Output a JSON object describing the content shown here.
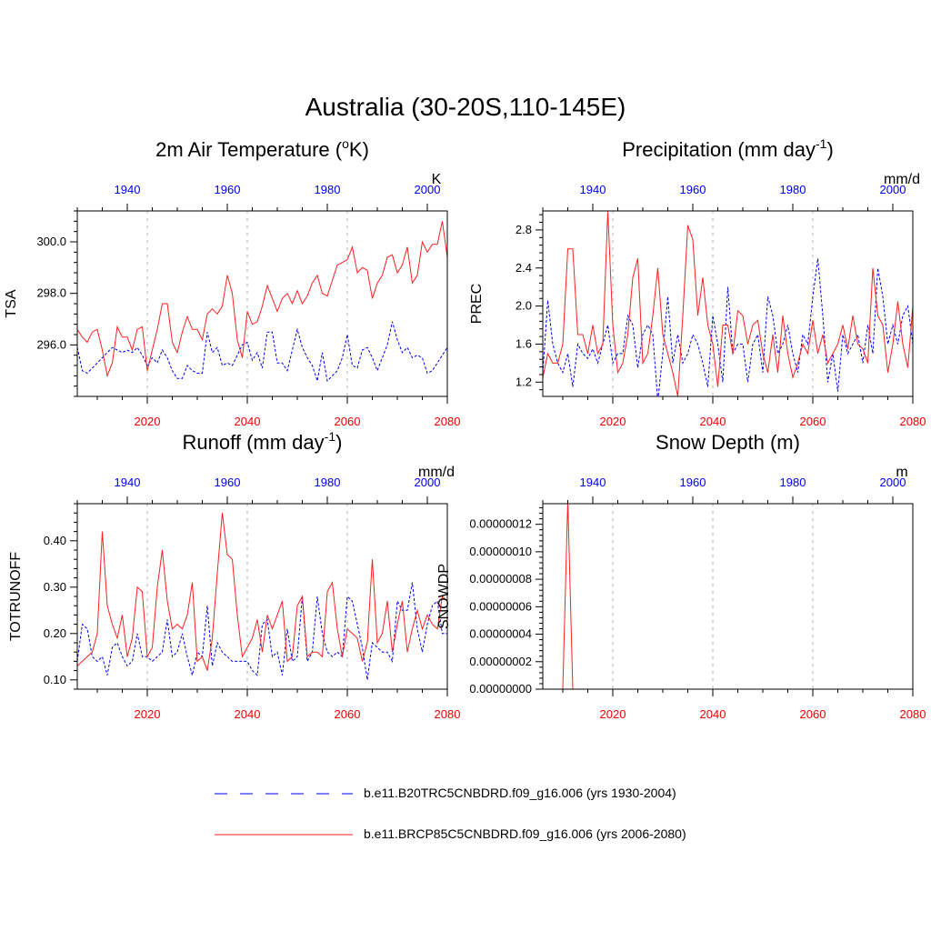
{
  "title": "Australia (30-20S,110-145E)",
  "colors": {
    "model_a": "#0000ee",
    "model_b": "#ff2020",
    "bottom_ticks": "#ee0000",
    "top_ticks": "#0000ee",
    "grid": "#b0b0b0"
  },
  "chart_data": [
    {
      "type": "line",
      "title_main": "2m Air Temperature (",
      "title_sup": "o",
      "title_end": "K)",
      "ylabel": "TSA",
      "units": "K",
      "ylim": [
        294.0,
        301.2
      ],
      "yticks": [
        296.0,
        298.0,
        300.0
      ],
      "ytick_labels": [
        "296.0",
        "298.0",
        "300.0"
      ],
      "x_bottom": [
        2006,
        2080
      ],
      "bottom_ticks": [
        "2020",
        "2040",
        "2060",
        "2080"
      ],
      "top_ticks": [
        "1940",
        "1960",
        "1980",
        "2000"
      ],
      "series": [
        {
          "name": "b.e11.B20TRC5CNBDRD.f09_g16.006 (yrs 1930-2004)",
          "style": "dashed",
          "start": 2006,
          "values": [
            295.9,
            295.0,
            294.9,
            295.1,
            295.3,
            295.5,
            295.7,
            295.9,
            295.8,
            295.7,
            295.8,
            295.7,
            295.9,
            295.6,
            295.2,
            295.5,
            295.3,
            295.8,
            295.5,
            295.0,
            294.7,
            294.7,
            295.2,
            295.0,
            294.9,
            294.9,
            296.5,
            295.7,
            295.9,
            295.2,
            295.3,
            295.2,
            295.6,
            296.0,
            296.1,
            295.4,
            295.7,
            295.1,
            296.5,
            296.5,
            295.3,
            295.3,
            295.0,
            295.8,
            296.6,
            295.9,
            295.5,
            295.2,
            294.6,
            295.7,
            294.6,
            294.8,
            295.0,
            295.5,
            296.4,
            295.2,
            295.1,
            295.8,
            295.9,
            295.5,
            295.0,
            295.5,
            296.0,
            296.9,
            296.2,
            295.7,
            295.9,
            295.5,
            295.6,
            295.5,
            294.9,
            295.0,
            295.3,
            295.6,
            295.9
          ]
        },
        {
          "name": "b.e11.BRCP85C5CNBDRD.f09_g16.006 (yrs 2006-2080)",
          "style": "solid",
          "start": 2006,
          "values": [
            296.6,
            296.3,
            296.1,
            296.5,
            296.6,
            295.8,
            294.8,
            295.3,
            296.7,
            296.3,
            296.3,
            295.8,
            296.6,
            296.7,
            295.0,
            295.8,
            296.6,
            297.6,
            297.6,
            296.1,
            295.7,
            296.5,
            297.1,
            296.6,
            296.6,
            296.2,
            297.2,
            297.4,
            297.2,
            297.5,
            298.7,
            298.0,
            296.2,
            295.5,
            297.3,
            296.8,
            296.9,
            297.5,
            298.3,
            297.8,
            297.3,
            297.8,
            298.0,
            297.6,
            298.1,
            297.6,
            297.9,
            298.4,
            298.7,
            298.0,
            297.9,
            298.5,
            299.1,
            299.2,
            299.3,
            299.8,
            298.8,
            299.0,
            298.9,
            297.8,
            298.4,
            298.7,
            299.4,
            299.5,
            298.8,
            299.1,
            299.8,
            298.4,
            298.7,
            300.0,
            299.6,
            299.9,
            299.9,
            300.8,
            299.4
          ]
        }
      ]
    },
    {
      "type": "line",
      "title_main": "Precipitation (mm day",
      "title_sup": "-1",
      "title_end": ")",
      "ylabel": "PREC",
      "units": "mm/d",
      "ylim": [
        1.05,
        3.0
      ],
      "yticks": [
        1.2,
        1.6,
        2.0,
        2.4,
        2.8
      ],
      "ytick_labels": [
        "1.2",
        "1.6",
        "2.0",
        "2.4",
        "2.8"
      ],
      "x_bottom": [
        2006,
        2080
      ],
      "bottom_ticks": [
        "2020",
        "2040",
        "2060",
        "2080"
      ],
      "top_ticks": [
        "1940",
        "1960",
        "1980",
        "2000"
      ],
      "series": [
        {
          "name": "b.e11.B20TRC5CNBDRD.f09_g16.006 (yrs 1930-2004)",
          "style": "dashed",
          "start": 2006,
          "values": [
            1.3,
            2.06,
            1.6,
            1.4,
            1.3,
            1.5,
            1.15,
            1.6,
            1.5,
            1.45,
            1.55,
            1.4,
            1.6,
            1.8,
            1.4,
            1.5,
            1.5,
            1.9,
            1.8,
            1.35,
            1.7,
            1.8,
            1.7,
            1.0,
            1.5,
            2.1,
            1.4,
            1.7,
            1.4,
            1.5,
            1.7,
            1.6,
            1.4,
            1.15,
            1.9,
            1.6,
            1.2,
            2.2,
            1.5,
            1.6,
            1.6,
            1.2,
            1.6,
            1.7,
            1.3,
            2.1,
            1.9,
            1.5,
            1.6,
            1.8,
            1.5,
            1.3,
            1.7,
            1.6,
            2.1,
            2.5,
            1.9,
            1.2,
            1.5,
            1.1,
            1.7,
            1.5,
            1.6,
            1.7,
            1.4,
            1.8,
            1.5,
            2.4,
            2.1,
            1.6,
            1.8,
            1.6,
            1.9,
            2.0,
            1.6
          ]
        },
        {
          "name": "b.e11.BRCP85C5CNBDRD.f09_g16.006 (yrs 2006-2080)",
          "style": "solid",
          "start": 2006,
          "values": [
            1.25,
            1.5,
            1.4,
            1.4,
            1.6,
            2.6,
            2.6,
            1.7,
            1.7,
            1.5,
            1.8,
            1.5,
            1.6,
            3.0,
            1.8,
            1.3,
            1.4,
            1.7,
            2.3,
            2.5,
            1.4,
            1.5,
            1.9,
            2.4,
            1.7,
            1.5,
            1.3,
            1.05,
            1.9,
            2.85,
            2.7,
            1.9,
            2.3,
            1.8,
            1.6,
            1.15,
            1.8,
            1.8,
            1.5,
            1.95,
            1.9,
            1.6,
            1.8,
            1.85,
            1.5,
            1.3,
            1.7,
            1.3,
            1.9,
            1.5,
            1.25,
            1.4,
            1.6,
            1.5,
            1.85,
            1.5,
            1.7,
            1.4,
            1.5,
            1.6,
            1.8,
            1.55,
            1.9,
            1.6,
            1.55,
            1.4,
            2.4,
            1.9,
            1.8,
            1.3,
            1.6,
            2.05,
            1.6,
            1.35,
            2.0
          ]
        }
      ]
    },
    {
      "type": "line",
      "title_main": "Runoff (mm day",
      "title_sup": "-1",
      "title_end": ")",
      "ylabel": "TOTRUNOFF",
      "units": "mm/d",
      "ylim": [
        0.08,
        0.48
      ],
      "yticks": [
        0.1,
        0.2,
        0.3,
        0.4
      ],
      "ytick_labels": [
        "0.10",
        "0.20",
        "0.30",
        "0.40"
      ],
      "x_bottom": [
        2006,
        2080
      ],
      "bottom_ticks": [
        "2020",
        "2040",
        "2060",
        "2080"
      ],
      "top_ticks": [
        "1940",
        "1960",
        "1980",
        "2000"
      ],
      "series": [
        {
          "name": "b.e11.B20TRC5CNBDRD.f09_g16.006 (yrs 1930-2004)",
          "style": "dashed",
          "start": 2006,
          "values": [
            0.14,
            0.22,
            0.21,
            0.15,
            0.14,
            0.15,
            0.11,
            0.17,
            0.18,
            0.15,
            0.13,
            0.14,
            0.2,
            0.15,
            0.15,
            0.14,
            0.15,
            0.16,
            0.23,
            0.15,
            0.16,
            0.2,
            0.15,
            0.11,
            0.16,
            0.15,
            0.26,
            0.13,
            0.18,
            0.16,
            0.15,
            0.14,
            0.14,
            0.14,
            0.14,
            0.12,
            0.11,
            0.22,
            0.23,
            0.15,
            0.16,
            0.11,
            0.21,
            0.14,
            0.15,
            0.28,
            0.14,
            0.16,
            0.28,
            0.2,
            0.16,
            0.15,
            0.16,
            0.15,
            0.28,
            0.27,
            0.22,
            0.17,
            0.1,
            0.18,
            0.17,
            0.16,
            0.16,
            0.14,
            0.27,
            0.25,
            0.25,
            0.31,
            0.21,
            0.16,
            0.22,
            0.26,
            0.27,
            0.2,
            0.2
          ]
        },
        {
          "name": "b.e11.BRCP85C5CNBDRD.f09_g16.006 (yrs 2006-2080)",
          "style": "solid",
          "start": 2006,
          "values": [
            0.13,
            0.14,
            0.15,
            0.16,
            0.2,
            0.42,
            0.26,
            0.22,
            0.19,
            0.24,
            0.15,
            0.19,
            0.3,
            0.29,
            0.15,
            0.17,
            0.3,
            0.38,
            0.27,
            0.21,
            0.22,
            0.21,
            0.24,
            0.31,
            0.14,
            0.15,
            0.12,
            0.19,
            0.33,
            0.46,
            0.37,
            0.36,
            0.24,
            0.15,
            0.17,
            0.19,
            0.23,
            0.16,
            0.24,
            0.21,
            0.24,
            0.27,
            0.14,
            0.15,
            0.26,
            0.28,
            0.15,
            0.16,
            0.16,
            0.15,
            0.29,
            0.31,
            0.21,
            0.15,
            0.21,
            0.2,
            0.19,
            0.14,
            0.18,
            0.36,
            0.18,
            0.2,
            0.27,
            0.16,
            0.22,
            0.27,
            0.16,
            0.21,
            0.25,
            0.21,
            0.24,
            0.22,
            0.21,
            0.28,
            0.27
          ]
        }
      ]
    },
    {
      "type": "line",
      "title_main": "Snow Depth (m)",
      "title_sup": "",
      "title_end": "",
      "ylabel": "SNOWDP",
      "units": "m",
      "ylim": [
        0,
        1.35e-07
      ],
      "yticks": [
        0,
        2e-08,
        4e-08,
        6e-08,
        8e-08,
        1e-07,
        1.2e-07
      ],
      "ytick_labels": [
        "0.00000000",
        "0.00000002",
        "0.00000004",
        "0.00000006",
        "0.00000008",
        "0.00000010",
        "0.00000012"
      ],
      "x_bottom": [
        2006,
        2080
      ],
      "bottom_ticks": [
        "2020",
        "2040",
        "2060",
        "2080"
      ],
      "top_ticks": [
        "1940",
        "1960",
        "1980",
        "2000"
      ],
      "series": [
        {
          "name": "b.e11.BRCP85C5CNBDRD.f09_g16.006 (yrs 2006-2080)",
          "style": "solid",
          "start": 2010,
          "values": [
            0,
            1.38e-07,
            0
          ]
        }
      ]
    }
  ],
  "legend": [
    {
      "label": "b.e11.B20TRC5CNBDRD.f09_g16.006 (yrs 1930-2004)",
      "style": "dashed"
    },
    {
      "label": "b.e11.BRCP85C5CNBDRD.f09_g16.006 (yrs 2006-2080)",
      "style": "solid"
    }
  ]
}
